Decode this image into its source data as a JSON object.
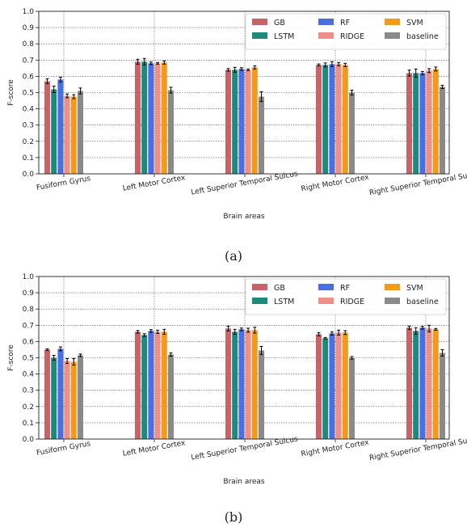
{
  "colors": {
    "GB": "#c96368",
    "LSTM": "#1f8a7a",
    "RF": "#4a6fe0",
    "RIDGE": "#ef8f86",
    "SVM": "#f39a1a",
    "baseline": "#8a8a8a"
  },
  "chart_data": [
    {
      "type": "bar",
      "caption": "(a)",
      "xlabel": "Brain areas",
      "ylabel": "F-score",
      "ylim": [
        0,
        1.0
      ],
      "yticks": [
        "0.0",
        "0.1",
        "0.2",
        "0.3",
        "0.4",
        "0.5",
        "0.6",
        "0.7",
        "0.8",
        "0.9",
        "1.0"
      ],
      "grid": true,
      "legend_position": "top-right",
      "categories": [
        "Fusiform Gyrus",
        "Left Motor Cortex",
        "Left Superior Temporal Sulcus",
        "Right Motor Cortex",
        "Right Superior Temporal Sulcus"
      ],
      "series": [
        {
          "name": "GB",
          "values": [
            0.57,
            0.69,
            0.64,
            0.67,
            0.62
          ],
          "errors": [
            0.015,
            0.015,
            0.008,
            0.006,
            0.018
          ]
        },
        {
          "name": "LSTM",
          "values": [
            0.52,
            0.69,
            0.64,
            0.67,
            0.62
          ],
          "errors": [
            0.02,
            0.02,
            0.015,
            0.012,
            0.025
          ]
        },
        {
          "name": "RF",
          "values": [
            0.58,
            0.68,
            0.645,
            0.675,
            0.62
          ],
          "errors": [
            0.015,
            0.008,
            0.008,
            0.015,
            0.01
          ]
        },
        {
          "name": "RIDGE",
          "values": [
            0.48,
            0.68,
            0.64,
            0.675,
            0.635
          ],
          "errors": [
            0.012,
            0.005,
            0.005,
            0.01,
            0.012
          ]
        },
        {
          "name": "SVM",
          "values": [
            0.475,
            0.685,
            0.655,
            0.67,
            0.645
          ],
          "errors": [
            0.012,
            0.01,
            0.01,
            0.01,
            0.012
          ]
        },
        {
          "name": "baseline",
          "values": [
            0.51,
            0.515,
            0.475,
            0.5,
            0.535
          ],
          "errors": [
            0.018,
            0.018,
            0.03,
            0.015,
            0.01
          ]
        }
      ]
    },
    {
      "type": "bar",
      "caption": "(b)",
      "xlabel": "Brain areas",
      "ylabel": "F-score",
      "ylim": [
        0,
        1.0
      ],
      "yticks": [
        "0.0",
        "0.1",
        "0.2",
        "0.3",
        "0.4",
        "0.5",
        "0.6",
        "0.7",
        "0.8",
        "0.9",
        "1.0"
      ],
      "grid": true,
      "legend_position": "top-right",
      "categories": [
        "Fusiform Gyrus",
        "Left Motor Cortex",
        "Left Superior Temporal Sulcus",
        "Right Motor Cortex",
        "Right Superior Temporal Sulcus"
      ],
      "series": [
        {
          "name": "GB",
          "values": [
            0.55,
            0.66,
            0.68,
            0.645,
            0.685
          ],
          "errors": [
            0.005,
            0.008,
            0.015,
            0.01,
            0.01
          ]
        },
        {
          "name": "LSTM",
          "values": [
            0.5,
            0.64,
            0.66,
            0.62,
            0.665
          ],
          "errors": [
            0.015,
            0.008,
            0.015,
            0.005,
            0.02
          ]
        },
        {
          "name": "RF",
          "values": [
            0.555,
            0.665,
            0.675,
            0.65,
            0.685
          ],
          "errors": [
            0.012,
            0.008,
            0.008,
            0.01,
            0.008
          ]
        },
        {
          "name": "RIDGE",
          "values": [
            0.48,
            0.66,
            0.67,
            0.655,
            0.68
          ],
          "errors": [
            0.015,
            0.01,
            0.012,
            0.015,
            0.02
          ]
        },
        {
          "name": "SVM",
          "values": [
            0.475,
            0.66,
            0.67,
            0.655,
            0.675
          ],
          "errors": [
            0.02,
            0.015,
            0.018,
            0.012,
            0.005
          ]
        },
        {
          "name": "baseline",
          "values": [
            0.515,
            0.52,
            0.545,
            0.5,
            0.53
          ],
          "errors": [
            0.008,
            0.01,
            0.025,
            0.008,
            0.02
          ]
        }
      ]
    }
  ]
}
